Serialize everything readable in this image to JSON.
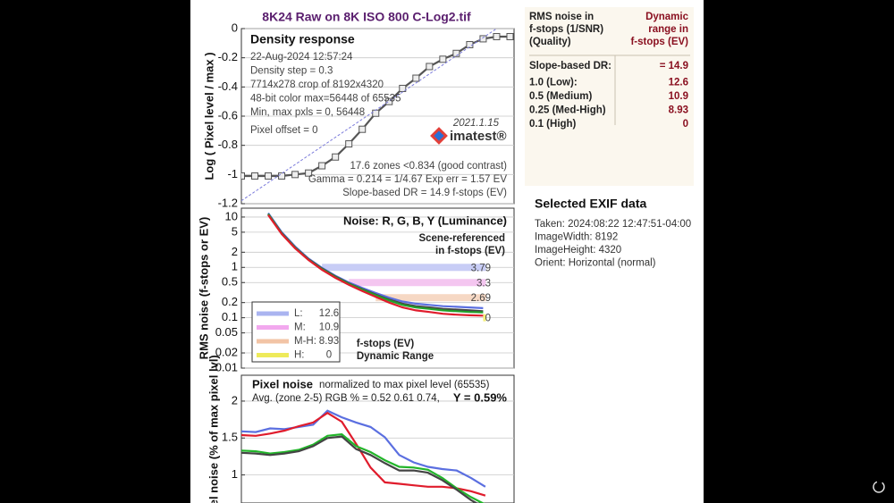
{
  "title": "8K24 Raw on 8K ISO 800 C-Log2.tif",
  "chart_data": [
    {
      "type": "line",
      "title": "Density response",
      "ylabel": "Log ( Pixel level / max )",
      "xlim": [
        0,
        20.3
      ],
      "ylim": [
        -1.2,
        0
      ],
      "yticks": [
        -1.2,
        -1,
        -0.8,
        -0.6,
        -0.4,
        -0.2,
        0
      ],
      "series": [
        {
          "color": "#555555",
          "marker": true,
          "x": [
            0,
            1,
            2,
            3,
            4,
            5,
            6,
            7,
            8,
            9,
            10,
            11,
            12,
            13,
            14,
            15,
            16,
            17,
            18,
            19,
            20
          ],
          "values": [
            -1.01,
            -1.01,
            -1.01,
            -1.01,
            -1.0,
            -0.99,
            -0.94,
            -0.88,
            -0.79,
            -0.69,
            -0.58,
            -0.5,
            -0.41,
            -0.34,
            -0.26,
            -0.21,
            -0.17,
            -0.11,
            -0.07,
            -0.055,
            -0.055
          ]
        },
        {
          "color": "#7b7bdb",
          "dash": true,
          "x": [
            0,
            19
          ],
          "values": [
            -1.18,
            0
          ]
        }
      ],
      "annotations": [
        "22-Aug-2024 12:57:24",
        "Density step = 0.3",
        "7714x278 crop of 8192x4320",
        "48-bit color  max=56448 of 65535",
        "Min, max pxls = 0, 56448",
        "Pixel offset = 0"
      ],
      "version": "2021.1.15",
      "logo": "imatest®",
      "notes": [
        "17.6 zones <0.834 (good contrast)",
        "Gamma = 0.214 = 1/4.67  Exp err = 1.57 EV",
        "Slope-based DR = 14.9 f-stops (EV)"
      ]
    },
    {
      "type": "line",
      "log": true,
      "title": "Noise: R, G, B, Y (Luminance)",
      "subtitle": [
        "Scene-referenced",
        "in f-stops (EV)"
      ],
      "ylabel": "RMS noise (f-stops or EV)",
      "xlim": [
        0,
        20.3
      ],
      "ylim": [
        0.01,
        15
      ],
      "yticks": [
        0.01,
        0.02,
        0.05,
        0.1,
        0.2,
        0.5,
        1,
        2,
        5,
        10
      ],
      "series": [
        {
          "color": "#5b6fe0",
          "x": [
            2,
            3,
            4,
            5,
            6,
            7,
            8,
            9,
            10,
            11,
            12,
            13,
            14,
            15,
            16,
            17,
            18
          ],
          "values": [
            12,
            5,
            2.6,
            1.5,
            0.98,
            0.68,
            0.5,
            0.39,
            0.31,
            0.25,
            0.21,
            0.19,
            0.18,
            0.17,
            0.165,
            0.16,
            0.155
          ]
        },
        {
          "color": "#444444",
          "x": [
            2,
            3,
            4,
            5,
            6,
            7,
            8,
            9,
            10,
            11,
            12,
            13,
            14,
            15,
            16,
            17,
            18
          ],
          "values": [
            11.5,
            4.8,
            2.5,
            1.45,
            0.95,
            0.66,
            0.48,
            0.37,
            0.29,
            0.23,
            0.19,
            0.17,
            0.16,
            0.15,
            0.145,
            0.14,
            0.135
          ]
        },
        {
          "color": "#22a12a",
          "x": [
            2,
            3,
            4,
            5,
            6,
            7,
            8,
            9,
            10,
            11,
            12,
            13,
            14,
            15,
            16,
            17,
            18
          ],
          "values": [
            11.5,
            4.7,
            2.45,
            1.42,
            0.93,
            0.64,
            0.47,
            0.36,
            0.28,
            0.22,
            0.18,
            0.16,
            0.15,
            0.14,
            0.135,
            0.13,
            0.128
          ]
        },
        {
          "color": "#e01c2c",
          "x": [
            2,
            3,
            4,
            5,
            6,
            7,
            8,
            9,
            10,
            11,
            12,
            13,
            14,
            15,
            16,
            17,
            18
          ],
          "values": [
            11,
            4.6,
            2.4,
            1.4,
            0.9,
            0.62,
            0.45,
            0.34,
            0.26,
            0.2,
            0.16,
            0.14,
            0.13,
            0.12,
            0.115,
            0.112,
            0.11
          ]
        }
      ],
      "dr_levels": [
        {
          "level": 1,
          "x_start": 6,
          "value": 3.79,
          "color": "#c8cdf6"
        },
        {
          "level": 0.5,
          "x_start": 8,
          "value": 3.3,
          "color": "#f4c6f0"
        },
        {
          "level": 0.25,
          "x_start": 10,
          "value": 2.69,
          "color": "#f6d8c4"
        },
        {
          "level": 0.1,
          "x_start": 18,
          "value": 0,
          "color": "#f4f07a"
        }
      ],
      "legend": [
        {
          "label": "L:",
          "value": 12.6,
          "color": "#aab4f0"
        },
        {
          "label": "M:",
          "value": 10.9,
          "color": "#f2a8ee"
        },
        {
          "label": "M-H:",
          "value": 8.93,
          "color": "#f2c4a6"
        },
        {
          "label": "H:",
          "value": 0,
          "color": "#eeea5a"
        }
      ],
      "footer": [
        "f-stops (EV)",
        "Dynamic Range"
      ]
    },
    {
      "type": "line",
      "title": "Pixel noise",
      "subtitle": "normalized to max pixel level (65535)",
      "stats": "Avg. (zone 2-5) RGB % = 0.52  0.61  0.74,",
      "stats_y": "Y = 0.59%",
      "ylabel": "Pixel noise (% of max pixel lvl)",
      "xlim": [
        0,
        19
      ],
      "ylim": [
        0.62,
        2.35
      ],
      "yticks": [
        1,
        1.5,
        2
      ],
      "series": [
        {
          "color": "#5b6fe0",
          "x": [
            0,
            1,
            2,
            3,
            4,
            5,
            6,
            7,
            8,
            9,
            10,
            11,
            12,
            13,
            14,
            15,
            16,
            17
          ],
          "values": [
            1.59,
            1.58,
            1.63,
            1.62,
            1.65,
            1.68,
            1.87,
            1.78,
            1.71,
            1.65,
            1.51,
            1.27,
            1.17,
            1.11,
            1.08,
            1.06,
            0.96,
            0.84
          ]
        },
        {
          "color": "#e01c2c",
          "x": [
            0,
            1,
            2,
            3,
            4,
            5,
            6,
            7,
            8,
            9,
            10,
            11,
            12,
            13,
            14,
            15,
            16,
            17
          ],
          "values": [
            1.54,
            1.53,
            1.56,
            1.6,
            1.66,
            1.71,
            1.84,
            1.72,
            1.42,
            1.1,
            0.9,
            0.88,
            0.86,
            0.84,
            0.84,
            0.82,
            0.78,
            0.72
          ]
        },
        {
          "color": "#22b52a",
          "x": [
            0,
            1,
            2,
            3,
            4,
            5,
            6,
            7,
            8,
            9,
            10,
            11,
            12,
            13,
            14,
            15,
            16,
            17
          ],
          "values": [
            1.33,
            1.32,
            1.29,
            1.31,
            1.34,
            1.41,
            1.53,
            1.55,
            1.39,
            1.31,
            1.2,
            1.11,
            1.1,
            1.07,
            0.96,
            0.82,
            0.7,
            0.6
          ]
        },
        {
          "color": "#444444",
          "x": [
            0,
            1,
            2,
            3,
            4,
            5,
            6,
            7,
            8,
            9,
            10,
            11,
            12,
            13,
            14,
            15,
            16,
            17
          ],
          "values": [
            1.3,
            1.29,
            1.27,
            1.29,
            1.32,
            1.39,
            1.5,
            1.52,
            1.35,
            1.27,
            1.16,
            1.06,
            1.06,
            1.03,
            0.93,
            0.8,
            0.66,
            0.55
          ]
        }
      ]
    }
  ],
  "dr_table": {
    "header_left": [
      "RMS noise in",
      "f-stops (1/SNR)",
      "(Quality)"
    ],
    "header_right": [
      "Dynamic",
      "range in",
      "f-stops (EV)"
    ],
    "rows": [
      [
        "Slope-based DR:",
        "= 14.9"
      ],
      [
        "1.0   (Low):",
        "12.6"
      ],
      [
        "0.5   (Medium)",
        "10.9"
      ],
      [
        "0.25 (Med-High)",
        "8.93"
      ],
      [
        "0.1   (High)",
        "0"
      ]
    ]
  },
  "exif": {
    "title": "Selected EXIF data",
    "lines": [
      "Taken: 2024:08:22 12:47:51-04:00",
      "ImageWidth:  8192",
      "ImageHeight:  4320",
      "Orient: Horizontal (normal)"
    ]
  }
}
